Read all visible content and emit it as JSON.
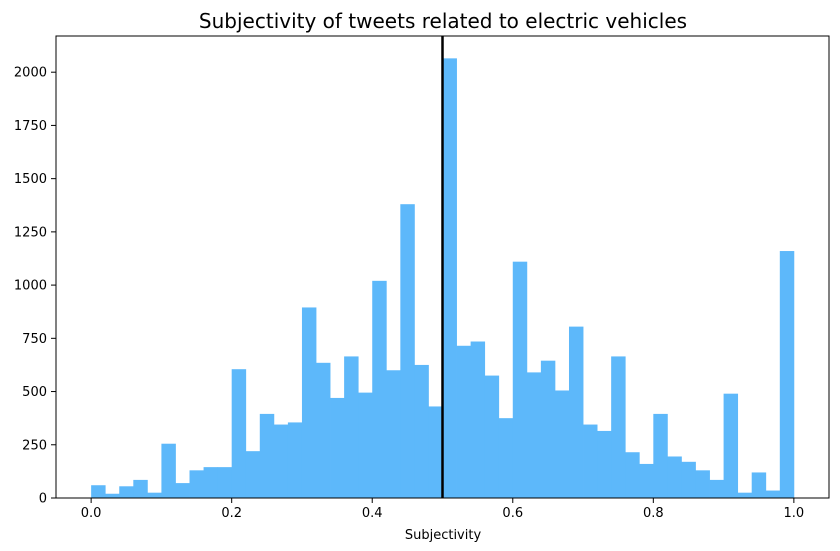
{
  "chart_data": {
    "type": "bar",
    "title": "Subjectivity of tweets related to electric vehicles",
    "xlabel": "Subjectivity",
    "ylabel": "",
    "xlim": [
      -0.05,
      1.05
    ],
    "ylim": [
      0,
      2170
    ],
    "x_ticks": [
      "0.0",
      "0.2",
      "0.4",
      "0.6",
      "0.8",
      "1.0"
    ],
    "y_ticks": [
      "0",
      "250",
      "500",
      "750",
      "1000",
      "1250",
      "1500",
      "1750",
      "2000"
    ],
    "bin_width": 0.02,
    "bin_starts": [
      0.0,
      0.02,
      0.04,
      0.06,
      0.08,
      0.1,
      0.12,
      0.14,
      0.16,
      0.18,
      0.2,
      0.22,
      0.24,
      0.26,
      0.28,
      0.3,
      0.32,
      0.34,
      0.36,
      0.38,
      0.4,
      0.42,
      0.44,
      0.46,
      0.48,
      0.5,
      0.52,
      0.54,
      0.56,
      0.58,
      0.6,
      0.62,
      0.64,
      0.66,
      0.68,
      0.7,
      0.72,
      0.74,
      0.76,
      0.78,
      0.8,
      0.82,
      0.84,
      0.86,
      0.88,
      0.9,
      0.92,
      0.94,
      0.96,
      0.98
    ],
    "values": [
      60,
      20,
      55,
      85,
      25,
      255,
      70,
      130,
      145,
      145,
      605,
      220,
      395,
      345,
      355,
      895,
      635,
      470,
      665,
      495,
      1020,
      600,
      1380,
      625,
      430,
      2065,
      715,
      735,
      575,
      375,
      1110,
      590,
      645,
      505,
      805,
      345,
      315,
      665,
      215,
      160,
      395,
      195,
      170,
      130,
      85,
      490,
      25,
      120,
      35,
      1160
    ],
    "vline": {
      "x": 0.5,
      "color": "#000000"
    },
    "bar_color": "#5db8fa",
    "grid": false
  }
}
